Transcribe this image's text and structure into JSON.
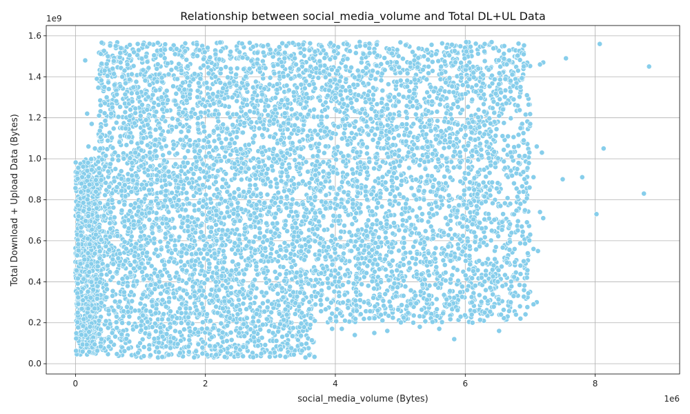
{
  "chart_data": {
    "type": "scatter",
    "title": "Relationship between social_media_volume and Total DL+UL Data",
    "xlabel": "social_media_volume (Bytes)",
    "ylabel": "Total Download + Upload Data (Bytes)",
    "x_offset_label": "1e6",
    "y_offset_label": "1e9",
    "xlim": [
      -0.45,
      9.3
    ],
    "ylim": [
      -0.05,
      1.65
    ],
    "x_ticks": [
      0,
      2,
      4,
      6,
      8
    ],
    "x_tick_labels": [
      "0",
      "2",
      "4",
      "6",
      "8"
    ],
    "y_ticks": [
      0.0,
      0.2,
      0.4,
      0.6,
      0.8,
      1.0,
      1.2,
      1.4,
      1.6
    ],
    "y_tick_labels": [
      "0.0",
      "0.2",
      "0.4",
      "0.6",
      "0.8",
      "1.0",
      "1.2",
      "1.4",
      "1.6"
    ],
    "grid": true,
    "marker_color": "#87CEEB",
    "marker_edge_color": "#ffffff",
    "series": [
      {
        "values_unit": "x in 1e6 bytes, y in 1e9 bytes",
        "points": [
          [
            0.15,
            1.48
          ],
          [
            0.18,
            1.22
          ],
          [
            0.25,
            1.17
          ],
          [
            0.33,
            1.39
          ],
          [
            0.45,
            1.43
          ],
          [
            0.5,
            1.5
          ],
          [
            0.62,
            1.55
          ],
          [
            0.7,
            1.54
          ],
          [
            0.2,
            1.06
          ],
          [
            0.3,
            1.05
          ],
          [
            0.48,
            1.3
          ],
          [
            0.55,
            1.22
          ],
          [
            0.6,
            1.36
          ],
          [
            0.72,
            1.4
          ],
          [
            0.8,
            1.46
          ],
          [
            0.9,
            1.52
          ],
          [
            7.55,
            1.49
          ],
          [
            8.07,
            1.56
          ],
          [
            8.83,
            1.45
          ],
          [
            8.13,
            1.05
          ],
          [
            7.5,
            0.9
          ],
          [
            7.8,
            0.91
          ],
          [
            8.75,
            0.83
          ],
          [
            8.02,
            0.73
          ],
          [
            7.2,
            1.47
          ],
          [
            7.15,
            1.46
          ],
          [
            7.1,
            1.06
          ],
          [
            7.18,
            1.03
          ],
          [
            7.2,
            0.71
          ],
          [
            7.15,
            0.74
          ],
          [
            7.05,
            0.56
          ],
          [
            7.12,
            0.55
          ],
          [
            7.1,
            0.3
          ],
          [
            7.05,
            0.29
          ],
          [
            6.95,
            0.42
          ],
          [
            6.85,
            0.22
          ],
          [
            6.55,
            0.24
          ],
          [
            6.52,
            0.16
          ],
          [
            5.83,
            0.12
          ],
          [
            5.6,
            0.17
          ],
          [
            4.8,
            0.16
          ],
          [
            4.6,
            0.15
          ],
          [
            4.3,
            0.14
          ],
          [
            4.1,
            0.17
          ],
          [
            3.95,
            0.17
          ],
          [
            5.2,
            0.2
          ],
          [
            5.3,
            0.18
          ],
          [
            6.1,
            0.24
          ],
          [
            6.3,
            0.25
          ],
          [
            6.5,
            0.4
          ],
          [
            6.7,
            0.3
          ],
          [
            6.9,
            0.5
          ],
          [
            6.95,
            0.69
          ],
          [
            6.85,
            0.78
          ],
          [
            6.75,
            0.88
          ],
          [
            6.8,
            0.95
          ],
          [
            6.9,
            1.09
          ],
          [
            6.95,
            1.31
          ],
          [
            6.85,
            1.35
          ],
          [
            6.9,
            1.51
          ],
          [
            6.6,
            1.55
          ],
          [
            6.3,
            1.56
          ],
          [
            7.0,
            1.17
          ],
          [
            7.05,
            0.91
          ]
        ]
      }
    ],
    "cloud_regions": [
      {
        "x0": 0.0,
        "x1": 3.68,
        "y0": 0.03,
        "y1": 0.95,
        "count": 2600
      },
      {
        "x0": 0.35,
        "x1": 3.68,
        "y0": 0.95,
        "y1": 1.57,
        "count": 1500
      },
      {
        "x0": 3.68,
        "x1": 7.0,
        "y0": 0.2,
        "y1": 1.57,
        "count": 2900
      },
      {
        "x0": 0.0,
        "x1": 0.4,
        "y0": 0.05,
        "y1": 1.0,
        "count": 500
      }
    ]
  }
}
